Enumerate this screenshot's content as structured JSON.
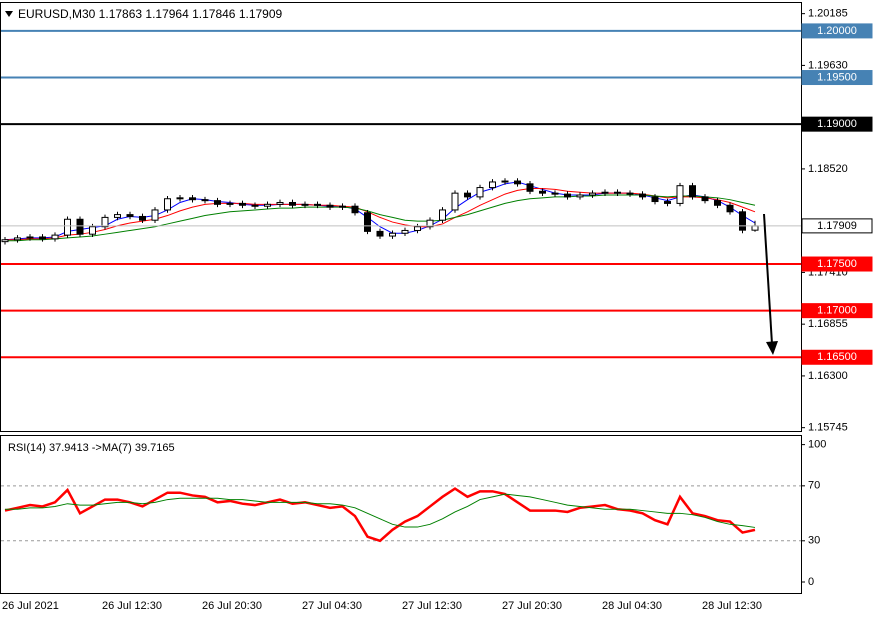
{
  "chart_data": [
    {
      "type": "candlestick",
      "title": "EURUSD,M30  1.17863 1.17964 1.17846 1.17909",
      "ylim": [
        1.1572,
        1.2031
      ],
      "yticks": [
        1.20185,
        {
          "value": 1.1963,
          "label": "1.19630"
        },
        {
          "value": 1.1852,
          "label": "1.18520"
        },
        {
          "value": 1.1741,
          "label": "1.17410"
        },
        1.16855,
        {
          "value": 1.163,
          "label": "1.16300"
        },
        1.15745
      ],
      "open": [
        1.1774,
        1.1776,
        1.1778,
        1.1779,
        1.1777,
        1.1781,
        1.1798,
        1.1782,
        1.179,
        1.18,
        1.1803,
        1.1801,
        1.1797,
        1.1808,
        1.182,
        1.1821,
        1.1819,
        1.1818,
        1.1814,
        1.1815,
        1.1813,
        1.1812,
        1.1814,
        1.1816,
        1.1813,
        1.1814,
        1.1813,
        1.1811,
        1.1812,
        1.1805,
        1.1785,
        1.178,
        1.1783,
        1.1786,
        1.179,
        1.1797,
        1.1808,
        1.1826,
        1.1822,
        1.1832,
        1.1838,
        1.1839,
        1.1836,
        1.1828,
        1.1826,
        1.1825,
        1.1822,
        1.1824,
        1.1826,
        1.1827,
        1.1826,
        1.1825,
        1.1822,
        1.1817,
        1.1815,
        1.1834,
        1.1822,
        1.1818,
        1.1813,
        1.1806,
        1.17863
      ],
      "high": [
        1.1779,
        1.1781,
        1.1782,
        1.1782,
        1.1784,
        1.1801,
        1.1801,
        1.1793,
        1.1803,
        1.1806,
        1.1806,
        1.1804,
        1.1811,
        1.1823,
        1.1824,
        1.1824,
        1.1822,
        1.1821,
        1.1818,
        1.1818,
        1.1816,
        1.1817,
        1.1819,
        1.1819,
        1.1817,
        1.1817,
        1.1816,
        1.1815,
        1.1815,
        1.1808,
        1.1788,
        1.1786,
        1.1789,
        1.1793,
        1.18,
        1.1811,
        1.1829,
        1.1829,
        1.1835,
        1.1841,
        1.1842,
        1.1842,
        1.1839,
        1.1831,
        1.1829,
        1.1828,
        1.1827,
        1.1829,
        1.183,
        1.183,
        1.1829,
        1.1828,
        1.1825,
        1.182,
        1.1837,
        1.1837,
        1.1825,
        1.1821,
        1.1816,
        1.1809,
        1.17964
      ],
      "low": [
        1.1771,
        1.1773,
        1.1775,
        1.1774,
        1.1774,
        1.1778,
        1.1779,
        1.1779,
        1.1787,
        1.1797,
        1.1798,
        1.1794,
        1.1794,
        1.1805,
        1.1817,
        1.1816,
        1.1815,
        1.1811,
        1.1811,
        1.181,
        1.1809,
        1.1809,
        1.1811,
        1.181,
        1.181,
        1.181,
        1.1808,
        1.1808,
        1.1802,
        1.1782,
        1.1777,
        1.1777,
        1.178,
        1.1783,
        1.1787,
        1.1794,
        1.1805,
        1.1819,
        1.1819,
        1.1829,
        1.1835,
        1.1833,
        1.1825,
        1.1823,
        1.1822,
        1.1819,
        1.1819,
        1.1821,
        1.1823,
        1.1823,
        1.1822,
        1.1819,
        1.1814,
        1.1812,
        1.1812,
        1.1819,
        1.1815,
        1.181,
        1.1803,
        1.1783,
        1.17846
      ],
      "close": [
        1.1776,
        1.1778,
        1.1779,
        1.1777,
        1.1781,
        1.1798,
        1.1782,
        1.179,
        1.18,
        1.1803,
        1.1801,
        1.1797,
        1.1808,
        1.182,
        1.1821,
        1.1819,
        1.1818,
        1.1814,
        1.1815,
        1.1813,
        1.1812,
        1.1814,
        1.1816,
        1.1813,
        1.1814,
        1.1813,
        1.1811,
        1.1812,
        1.1805,
        1.1785,
        1.178,
        1.1783,
        1.1786,
        1.179,
        1.1797,
        1.1808,
        1.1826,
        1.1822,
        1.1832,
        1.1838,
        1.1839,
        1.1836,
        1.1828,
        1.1826,
        1.1825,
        1.1822,
        1.1824,
        1.1826,
        1.1827,
        1.1826,
        1.1825,
        1.1822,
        1.1817,
        1.1815,
        1.1834,
        1.1822,
        1.1818,
        1.1813,
        1.1806,
        1.17863,
        1.17909
      ],
      "series": [
        {
          "color": "#0000ff",
          "values": [
            1.1776,
            1.1777,
            1.1778,
            1.1778,
            1.1779,
            1.1785,
            1.1787,
            1.1789,
            1.1791,
            1.1798,
            1.1801,
            1.18,
            1.1802,
            1.1808,
            1.1816,
            1.182,
            1.1819,
            1.1817,
            1.1816,
            1.1814,
            1.1813,
            1.1813,
            1.1814,
            1.1814,
            1.1814,
            1.1813,
            1.1812,
            1.1812,
            1.1809,
            1.18,
            1.179,
            1.1783,
            1.1783,
            1.1786,
            1.1791,
            1.1798,
            1.181,
            1.1819,
            1.1827,
            1.1831,
            1.1836,
            1.1838,
            1.1834,
            1.183,
            1.1826,
            1.1824,
            1.1824,
            1.1824,
            1.1826,
            1.1826,
            1.1826,
            1.1824,
            1.1821,
            1.1818,
            1.1822,
            1.1824,
            1.1822,
            1.1818,
            1.1811,
            1.1802,
            1.1794
          ]
        },
        {
          "color": "#ff0000",
          "values": [
            1.1776,
            1.1776,
            1.1777,
            1.1777,
            1.1778,
            1.1781,
            1.1782,
            1.1784,
            1.1787,
            1.1791,
            1.1794,
            1.1796,
            1.1798,
            1.1802,
            1.1807,
            1.1811,
            1.1814,
            1.1815,
            1.1815,
            1.1815,
            1.1814,
            1.1814,
            1.1814,
            1.1814,
            1.1814,
            1.1813,
            1.1813,
            1.1812,
            1.1811,
            1.1806,
            1.18,
            1.1795,
            1.1792,
            1.179,
            1.179,
            1.1793,
            1.18,
            1.1806,
            1.1813,
            1.1819,
            1.1825,
            1.1829,
            1.1831,
            1.1831,
            1.183,
            1.1828,
            1.1827,
            1.1826,
            1.1826,
            1.1826,
            1.1826,
            1.1825,
            1.1823,
            1.1821,
            1.1822,
            1.1822,
            1.1821,
            1.1819,
            1.1816,
            1.1811,
            1.1806
          ]
        },
        {
          "color": "#008000",
          "values": [
            1.1775,
            1.1775,
            1.1776,
            1.1776,
            1.1777,
            1.1778,
            1.1779,
            1.178,
            1.1782,
            1.1784,
            1.1786,
            1.1788,
            1.179,
            1.1793,
            1.1796,
            1.1799,
            1.1802,
            1.1804,
            1.1806,
            1.1807,
            1.1808,
            1.1809,
            1.181,
            1.181,
            1.1811,
            1.1811,
            1.1811,
            1.1811,
            1.181,
            1.1807,
            1.1803,
            1.18,
            1.1797,
            1.1796,
            1.1796,
            1.1797,
            1.18,
            1.1803,
            1.1807,
            1.1811,
            1.1815,
            1.1818,
            1.182,
            1.1821,
            1.1822,
            1.1822,
            1.1823,
            1.1823,
            1.1824,
            1.1824,
            1.1824,
            1.1824,
            1.1823,
            1.1822,
            1.1823,
            1.1823,
            1.1822,
            1.1821,
            1.1819,
            1.1816,
            1.1813
          ]
        }
      ],
      "levels": [
        {
          "value": 1.2,
          "label": "1.20000",
          "color": "#4682b4",
          "label_bg": "#4682b4",
          "label_color": "#ffffff",
          "width": 2
        },
        {
          "value": 1.195,
          "label": "1.19500",
          "color": "#4682b4",
          "label_bg": "#4682b4",
          "label_color": "#ffffff",
          "width": 2
        },
        {
          "value": 1.19,
          "label": "1.19000",
          "color": "#000000",
          "label_bg": "#000000",
          "label_color": "#ffffff",
          "width": 2
        },
        {
          "value": 1.17909,
          "label": "1.17909",
          "color": "#c0c0c0",
          "label_bg": "#ffffff",
          "label_color": "#000000",
          "width": 1
        },
        {
          "value": 1.175,
          "label": "1.17500",
          "color": "#ff0000",
          "label_bg": "#ff0000",
          "label_color": "#ffffff",
          "width": 2
        },
        {
          "value": 1.17,
          "label": "1.17000",
          "color": "#ff0000",
          "label_bg": "#ff0000",
          "label_color": "#ffffff",
          "width": 2
        },
        {
          "value": 1.165,
          "label": "1.16500",
          "color": "#ff0000",
          "label_bg": "#ff0000",
          "label_color": "#ffffff",
          "width": 2
        }
      ]
    },
    {
      "type": "line",
      "title": "RSI(14) 37.9413  ->MA(7) 39.7165",
      "ylim": [
        -8,
        107
      ],
      "yticks": [
        100,
        70,
        30,
        0
      ],
      "levels": [
        70,
        30
      ],
      "categories": [
        "26 Jul 2021",
        null,
        null,
        null,
        null,
        null,
        null,
        null,
        "26 Jul 12:30",
        null,
        null,
        null,
        null,
        null,
        null,
        null,
        "26 Jul 20:30",
        null,
        null,
        null,
        null,
        null,
        null,
        null,
        "27 Jul 04:30",
        null,
        null,
        null,
        null,
        null,
        null,
        null,
        "27 Jul 12:30",
        null,
        null,
        null,
        null,
        null,
        null,
        null,
        "27 Jul 20:30",
        null,
        null,
        null,
        null,
        null,
        null,
        null,
        "28 Jul 04:30",
        null,
        null,
        null,
        null,
        null,
        null,
        null,
        "28 Jul 12:30",
        null,
        null,
        null,
        null
      ],
      "series": [
        {
          "color": "#ff0000",
          "width": 2.5,
          "values": [
            52,
            54,
            56,
            55,
            58,
            67,
            50,
            55,
            60,
            60,
            58,
            55,
            60,
            65,
            65,
            63,
            62,
            58,
            59,
            57,
            56,
            58,
            60,
            57,
            58,
            56,
            54,
            55,
            48,
            33,
            30,
            38,
            44,
            48,
            55,
            62,
            68,
            62,
            66,
            66,
            64,
            58,
            52,
            52,
            52,
            51,
            54,
            55,
            56,
            53,
            52,
            50,
            45,
            42,
            62,
            50,
            48,
            45,
            44,
            36,
            37.9413
          ]
        },
        {
          "color": "#008000",
          "width": 1,
          "values": [
            53,
            53,
            54,
            54,
            55,
            57,
            56,
            56,
            57,
            58,
            58,
            57,
            58,
            60,
            61,
            61,
            61,
            61,
            60,
            60,
            59,
            58,
            58,
            58,
            58,
            57,
            57,
            56,
            54,
            50,
            46,
            42,
            40,
            40,
            42,
            46,
            51,
            55,
            60,
            62,
            64,
            63,
            62,
            60,
            58,
            56,
            55,
            54,
            53,
            53,
            53,
            52,
            51,
            50,
            50,
            49,
            47,
            44,
            42,
            41,
            39.7165
          ]
        }
      ]
    }
  ]
}
